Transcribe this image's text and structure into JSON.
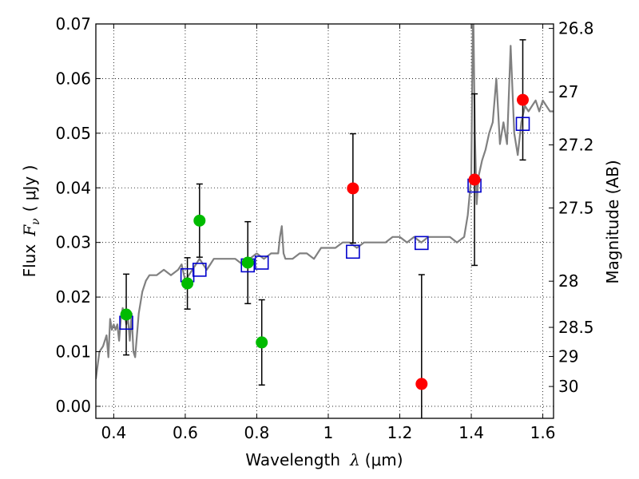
{
  "chart_data": {
    "type": "scatter",
    "xlabel_prefix": "Wavelength",
    "xlabel_symbol": "λ",
    "xlabel_unit": "(μm)",
    "ylabel_prefix": "Flux",
    "ylabel_symbol": "F",
    "ylabel_sub": "ν",
    "ylabel_unit": "( μJy )",
    "ylabel_right": "Magnitude (AB)",
    "xlim": [
      0.35,
      1.63
    ],
    "ylim": [
      -0.0022,
      0.07
    ],
    "x_ticks": [
      0.4,
      0.6,
      0.8,
      1.0,
      1.2,
      1.4,
      1.6
    ],
    "x_tick_labels": [
      "0.4",
      "0.6",
      "0.8",
      "1",
      "1.2",
      "1.4",
      "1.6"
    ],
    "y_ticks": [
      0.0,
      0.01,
      0.02,
      0.03,
      0.04,
      0.05,
      0.06,
      0.07
    ],
    "y_tick_labels": [
      "0.00",
      "0.01",
      "0.02",
      "0.03",
      "0.04",
      "0.05",
      "0.06",
      "0.07"
    ],
    "right_ticks": [
      {
        "mag": 26.8,
        "label": "26.8"
      },
      {
        "mag": 27.0,
        "label": "27"
      },
      {
        "mag": 27.2,
        "label": "27.2"
      },
      {
        "mag": 27.5,
        "label": "27.5"
      },
      {
        "mag": 28.0,
        "label": "28"
      },
      {
        "mag": 28.5,
        "label": "28.5"
      },
      {
        "mag": 29.0,
        "label": "29"
      },
      {
        "mag": 30.0,
        "label": "30"
      }
    ],
    "grid": true,
    "colors": {
      "model": "#808080",
      "green": "#00bb00",
      "red": "#ff0000",
      "box": "#0000cc",
      "errorbar": "#000000"
    },
    "model_spectrum": {
      "x": [
        0.35,
        0.36,
        0.37,
        0.38,
        0.385,
        0.39,
        0.395,
        0.4,
        0.405,
        0.41,
        0.415,
        0.42,
        0.425,
        0.43,
        0.435,
        0.44,
        0.445,
        0.45,
        0.455,
        0.46,
        0.47,
        0.48,
        0.49,
        0.5,
        0.52,
        0.54,
        0.56,
        0.58,
        0.59,
        0.6,
        0.61,
        0.62,
        0.63,
        0.64,
        0.65,
        0.66,
        0.67,
        0.68,
        0.7,
        0.72,
        0.74,
        0.76,
        0.78,
        0.8,
        0.82,
        0.84,
        0.86,
        0.865,
        0.87,
        0.875,
        0.88,
        0.9,
        0.92,
        0.94,
        0.96,
        0.98,
        1.0,
        1.02,
        1.04,
        1.06,
        1.08,
        1.1,
        1.12,
        1.14,
        1.16,
        1.18,
        1.2,
        1.22,
        1.24,
        1.26,
        1.28,
        1.3,
        1.32,
        1.34,
        1.36,
        1.38,
        1.39,
        1.4,
        1.405,
        1.41,
        1.415,
        1.42,
        1.43,
        1.44,
        1.45,
        1.46,
        1.47,
        1.48,
        1.49,
        1.5,
        1.51,
        1.52,
        1.53,
        1.54,
        1.55,
        1.56,
        1.57,
        1.58,
        1.59,
        1.6,
        1.61,
        1.62,
        1.63
      ],
      "y": [
        0.005,
        0.01,
        0.011,
        0.013,
        0.009,
        0.016,
        0.014,
        0.015,
        0.014,
        0.015,
        0.012,
        0.016,
        0.018,
        0.017,
        0.015,
        0.016,
        0.012,
        0.017,
        0.01,
        0.009,
        0.017,
        0.021,
        0.023,
        0.024,
        0.024,
        0.025,
        0.024,
        0.025,
        0.026,
        0.023,
        0.024,
        0.025,
        0.026,
        0.027,
        0.026,
        0.025,
        0.026,
        0.027,
        0.027,
        0.027,
        0.027,
        0.026,
        0.027,
        0.028,
        0.027,
        0.028,
        0.028,
        0.031,
        0.033,
        0.028,
        0.027,
        0.027,
        0.028,
        0.028,
        0.027,
        0.029,
        0.029,
        0.029,
        0.03,
        0.03,
        0.029,
        0.03,
        0.03,
        0.03,
        0.03,
        0.031,
        0.031,
        0.03,
        0.031,
        0.03,
        0.031,
        0.031,
        0.031,
        0.031,
        0.03,
        0.031,
        0.035,
        0.042,
        0.075,
        0.05,
        0.037,
        0.042,
        0.045,
        0.047,
        0.05,
        0.052,
        0.06,
        0.048,
        0.052,
        0.048,
        0.066,
        0.05,
        0.046,
        0.052,
        0.055,
        0.054,
        0.055,
        0.056,
        0.054,
        0.056,
        0.055,
        0.054,
        0.054
      ]
    },
    "green_points": [
      {
        "x": 0.435,
        "y": 0.0168,
        "err": 0.0074
      },
      {
        "x": 0.606,
        "y": 0.0225,
        "err": 0.0047
      },
      {
        "x": 0.64,
        "y": 0.034,
        "err": 0.0067
      },
      {
        "x": 0.775,
        "y": 0.0263,
        "err": 0.0075
      },
      {
        "x": 0.814,
        "y": 0.0117,
        "err": 0.0078
      }
    ],
    "red_points": [
      {
        "x": 1.069,
        "y": 0.0399,
        "err": 0.01
      },
      {
        "x": 1.261,
        "y": 0.0041,
        "err": 0.02
      },
      {
        "x": 1.409,
        "y": 0.0415,
        "err": 0.0157
      },
      {
        "x": 1.544,
        "y": 0.0561,
        "err": 0.011
      }
    ],
    "model_boxes": [
      {
        "x": 0.435,
        "y": 0.0153
      },
      {
        "x": 0.606,
        "y": 0.024
      },
      {
        "x": 0.64,
        "y": 0.025
      },
      {
        "x": 0.775,
        "y": 0.0258
      },
      {
        "x": 0.814,
        "y": 0.0263
      },
      {
        "x": 1.069,
        "y": 0.0283
      },
      {
        "x": 1.261,
        "y": 0.0299
      },
      {
        "x": 1.409,
        "y": 0.0404
      },
      {
        "x": 1.544,
        "y": 0.0517
      }
    ]
  }
}
